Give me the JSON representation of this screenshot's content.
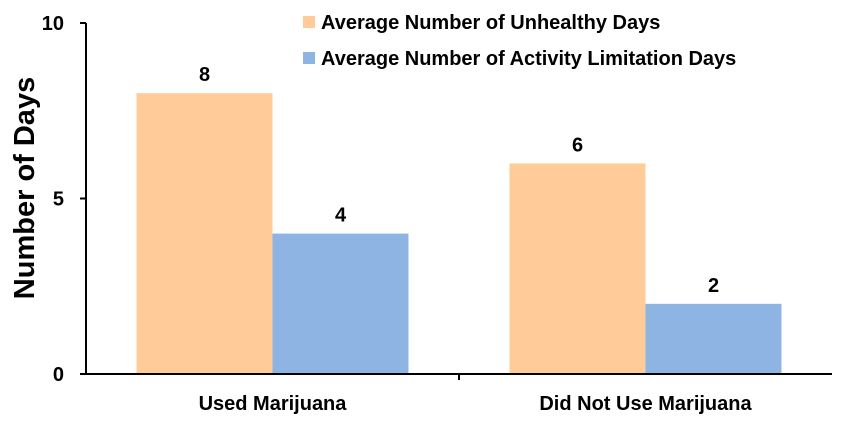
{
  "chart_data": {
    "type": "bar",
    "title": "",
    "xlabel": "",
    "ylabel": "Number of Days",
    "ylim": [
      0,
      10
    ],
    "yticks": [
      0,
      5,
      10
    ],
    "categories": [
      "Used Marijuana",
      "Did Not Use Marijuana"
    ],
    "series": [
      {
        "name": "Average Number of Unhealthy Days",
        "values": [
          8,
          6
        ],
        "color": "#FFCC99"
      },
      {
        "name": "Average Number of Activity Limitation Days",
        "values": [
          4,
          2
        ],
        "color": "#8EB4E3"
      }
    ],
    "data_labels": true,
    "grid": false,
    "legend": "top-right"
  }
}
